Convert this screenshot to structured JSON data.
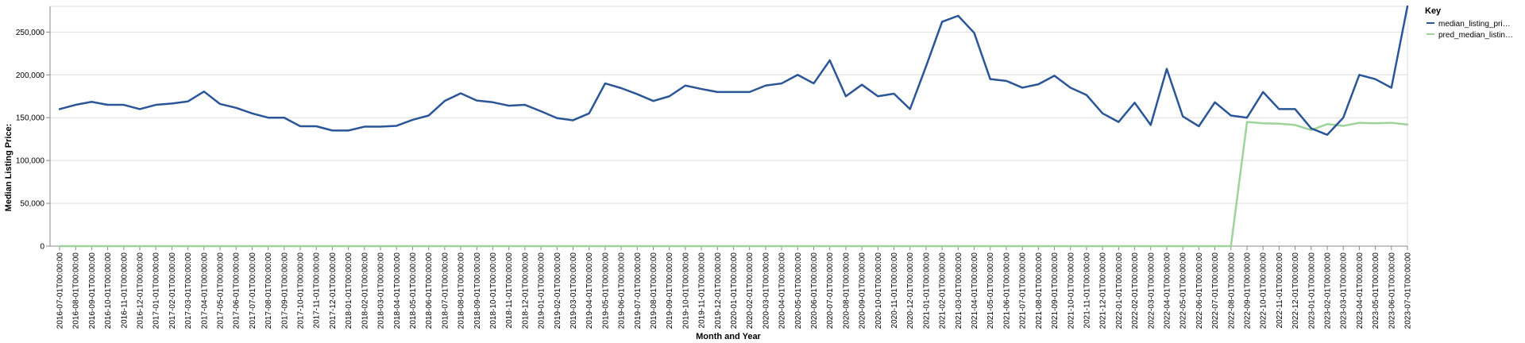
{
  "chart_data": {
    "type": "line",
    "title": "",
    "xlabel": "Month and Year",
    "ylabel": "Median Listing Price:",
    "ylim": [
      0,
      280000
    ],
    "yticks": [
      0,
      50000,
      100000,
      150000,
      200000,
      250000
    ],
    "ytick_labels": [
      "0",
      "50,000",
      "100,000",
      "150,000",
      "200,000",
      "250,000"
    ],
    "grid": true,
    "legend": {
      "title": "Key",
      "position": "top-right",
      "labels": [
        "median_listing_pri…",
        "pred_median_listin…"
      ]
    },
    "x": [
      "2016-07-01T00:00:00",
      "2016-08-01T00:00:00",
      "2016-09-01T00:00:00",
      "2016-10-01T00:00:00",
      "2016-11-01T00:00:00",
      "2016-12-01T00:00:00",
      "2017-01-01T00:00:00",
      "2017-02-01T00:00:00",
      "2017-03-01T00:00:00",
      "2017-04-01T00:00:00",
      "2017-05-01T00:00:00",
      "2017-06-01T00:00:00",
      "2017-07-01T00:00:00",
      "2017-08-01T00:00:00",
      "2017-09-01T00:00:00",
      "2017-10-01T00:00:00",
      "2017-11-01T00:00:00",
      "2017-12-01T00:00:00",
      "2018-01-01T00:00:00",
      "2018-02-01T00:00:00",
      "2018-03-01T00:00:00",
      "2018-04-01T00:00:00",
      "2018-05-01T00:00:00",
      "2018-06-01T00:00:00",
      "2018-07-01T00:00:00",
      "2018-08-01T00:00:00",
      "2018-09-01T00:00:00",
      "2018-10-01T00:00:00",
      "2018-11-01T00:00:00",
      "2018-12-01T00:00:00",
      "2019-01-01T00:00:00",
      "2019-02-01T00:00:00",
      "2019-03-01T00:00:00",
      "2019-04-01T00:00:00",
      "2019-05-01T00:00:00",
      "2019-06-01T00:00:00",
      "2019-07-01T00:00:00",
      "2019-08-01T00:00:00",
      "2019-09-01T00:00:00",
      "2019-10-01T00:00:00",
      "2019-11-01T00:00:00",
      "2019-12-01T00:00:00",
      "2020-01-01T00:00:00",
      "2020-02-01T00:00:00",
      "2020-03-01T00:00:00",
      "2020-04-01T00:00:00",
      "2020-05-01T00:00:00",
      "2020-06-01T00:00:00",
      "2020-07-01T00:00:00",
      "2020-08-01T00:00:00",
      "2020-09-01T00:00:00",
      "2020-10-01T00:00:00",
      "2020-11-01T00:00:00",
      "2020-12-01T00:00:00",
      "2021-01-01T00:00:00",
      "2021-02-01T00:00:00",
      "2021-03-01T00:00:00",
      "2021-04-01T00:00:00",
      "2021-05-01T00:00:00",
      "2021-06-01T00:00:00",
      "2021-07-01T00:00:00",
      "2021-08-01T00:00:00",
      "2021-09-01T00:00:00",
      "2021-10-01T00:00:00",
      "2021-11-01T00:00:00",
      "2021-12-01T00:00:00",
      "2022-01-01T00:00:00",
      "2022-02-01T00:00:00",
      "2022-03-01T00:00:00",
      "2022-04-01T00:00:00",
      "2022-05-01T00:00:00",
      "2022-06-01T00:00:00",
      "2022-07-01T00:00:00",
      "2022-08-01T00:00:00",
      "2022-09-01T00:00:00",
      "2022-10-01T00:00:00",
      "2022-11-01T00:00:00",
      "2022-12-01T00:00:00",
      "2023-01-01T00:00:00",
      "2023-02-01T00:00:00",
      "2023-03-01T00:00:00",
      "2023-04-01T00:00:00",
      "2023-05-01T00:00:00",
      "2023-06-01T00:00:00",
      "2023-07-01T00:00:00"
    ],
    "series": [
      {
        "name": "median_listing_pri…",
        "color": "#2a5597",
        "values": [
          160000,
          165000,
          168500,
          165000,
          165000,
          160000,
          165000,
          166500,
          169000,
          180500,
          166000,
          161500,
          155000,
          150000,
          150000,
          140000,
          140000,
          135000,
          135000,
          139500,
          139500,
          140500,
          147500,
          152500,
          169500,
          178500,
          170000,
          168000,
          164000,
          165000,
          157500,
          149500,
          147000,
          155000,
          190000,
          184500,
          177500,
          169500,
          175000,
          187500,
          183500,
          180000,
          180000,
          180000,
          187500,
          190000,
          200000,
          190000,
          217000,
          175000,
          188500,
          175000,
          178000,
          160000,
          210000,
          262000,
          269000,
          249000,
          195000,
          193000,
          185000,
          189000,
          199000,
          185000,
          176500,
          155000,
          145000,
          167500,
          141500,
          207000,
          151500,
          140000,
          168000,
          152500,
          150000,
          180000,
          160000,
          160000,
          137500,
          130000,
          150000,
          200000,
          195000,
          185000,
          280000
        ]
      },
      {
        "name": "pred_median_listin…",
        "color": "#9ed39a",
        "values": [
          0,
          0,
          0,
          0,
          0,
          0,
          0,
          0,
          0,
          0,
          0,
          0,
          0,
          0,
          0,
          0,
          0,
          0,
          0,
          0,
          0,
          0,
          0,
          0,
          0,
          0,
          0,
          0,
          0,
          0,
          0,
          0,
          0,
          0,
          0,
          0,
          0,
          0,
          0,
          0,
          0,
          0,
          0,
          0,
          0,
          0,
          0,
          0,
          0,
          0,
          0,
          0,
          0,
          0,
          0,
          0,
          0,
          0,
          0,
          0,
          0,
          0,
          0,
          0,
          0,
          0,
          0,
          0,
          0,
          0,
          0,
          0,
          0,
          0,
          145000,
          143500,
          143000,
          141500,
          135500,
          142500,
          140500,
          144000,
          143500,
          144000,
          142000
        ]
      }
    ]
  }
}
